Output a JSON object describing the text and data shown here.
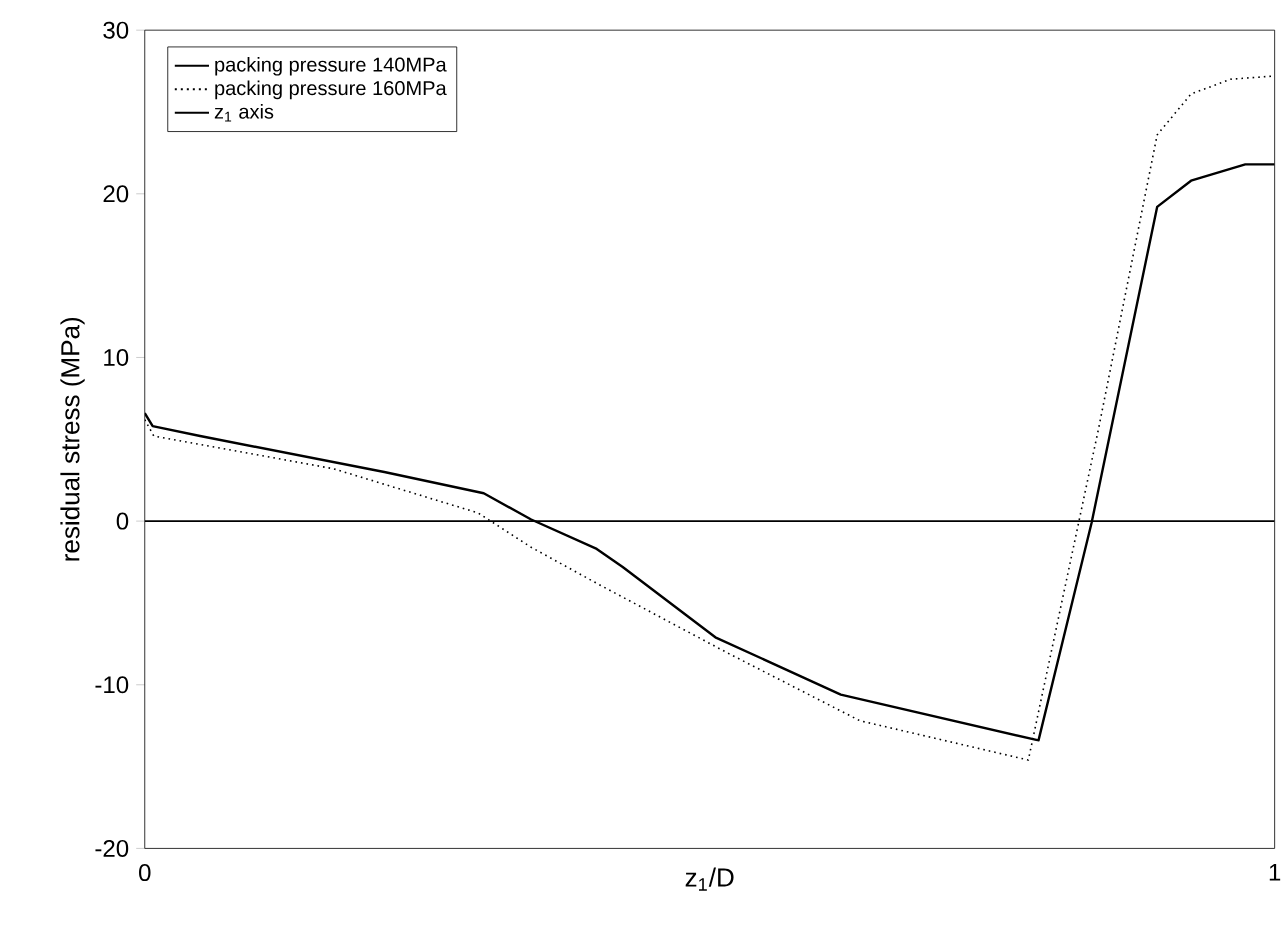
{
  "chart_data": {
    "type": "line",
    "xlabel": "z$_{1}$/D",
    "ylabel": "residual stress (MPa)",
    "xlim": [
      0,
      1
    ],
    "ylim": [
      -20,
      30
    ],
    "xticks": [
      0,
      1
    ],
    "yticks": [
      -20,
      -10,
      0,
      10,
      20,
      30
    ],
    "grid": false,
    "legend": "top left",
    "marker": "none",
    "series": [
      {
        "name": "packing pressure 140MPa",
        "color": "#000000",
        "line_style": "solid",
        "x": [
          0,
          0.007,
          0.049,
          0.212,
          0.3,
          0.342,
          0.4,
          0.423,
          0.505,
          0.616,
          0.791,
          0.838,
          0.896,
          0.926,
          0.974,
          1.0
        ],
        "values": [
          6.6,
          5.8,
          5.2,
          3.0,
          1.7,
          0.1,
          -1.7,
          -2.8,
          -7.1,
          -10.6,
          -13.4,
          -0.1,
          19.2,
          20.8,
          21.8,
          21.8
        ]
      },
      {
        "name": "packing pressure 160MPa",
        "color": "#000000",
        "line_style": "dotted",
        "x": [
          0,
          0.008,
          0.167,
          0.295,
          0.342,
          0.4,
          0.517,
          0.633,
          0.782,
          0.844,
          0.896,
          0.926,
          0.961,
          1.0
        ],
        "values": [
          6.2,
          5.2,
          3.2,
          0.5,
          -1.6,
          -3.8,
          -8.1,
          -12.2,
          -14.6,
          5.6,
          23.6,
          26.1,
          27.0,
          27.2
        ]
      },
      {
        "name": "z$_{1}$ axis",
        "color": "#000000",
        "line_style": "solid",
        "x": [
          0,
          1
        ],
        "values": [
          0,
          0
        ]
      }
    ]
  }
}
